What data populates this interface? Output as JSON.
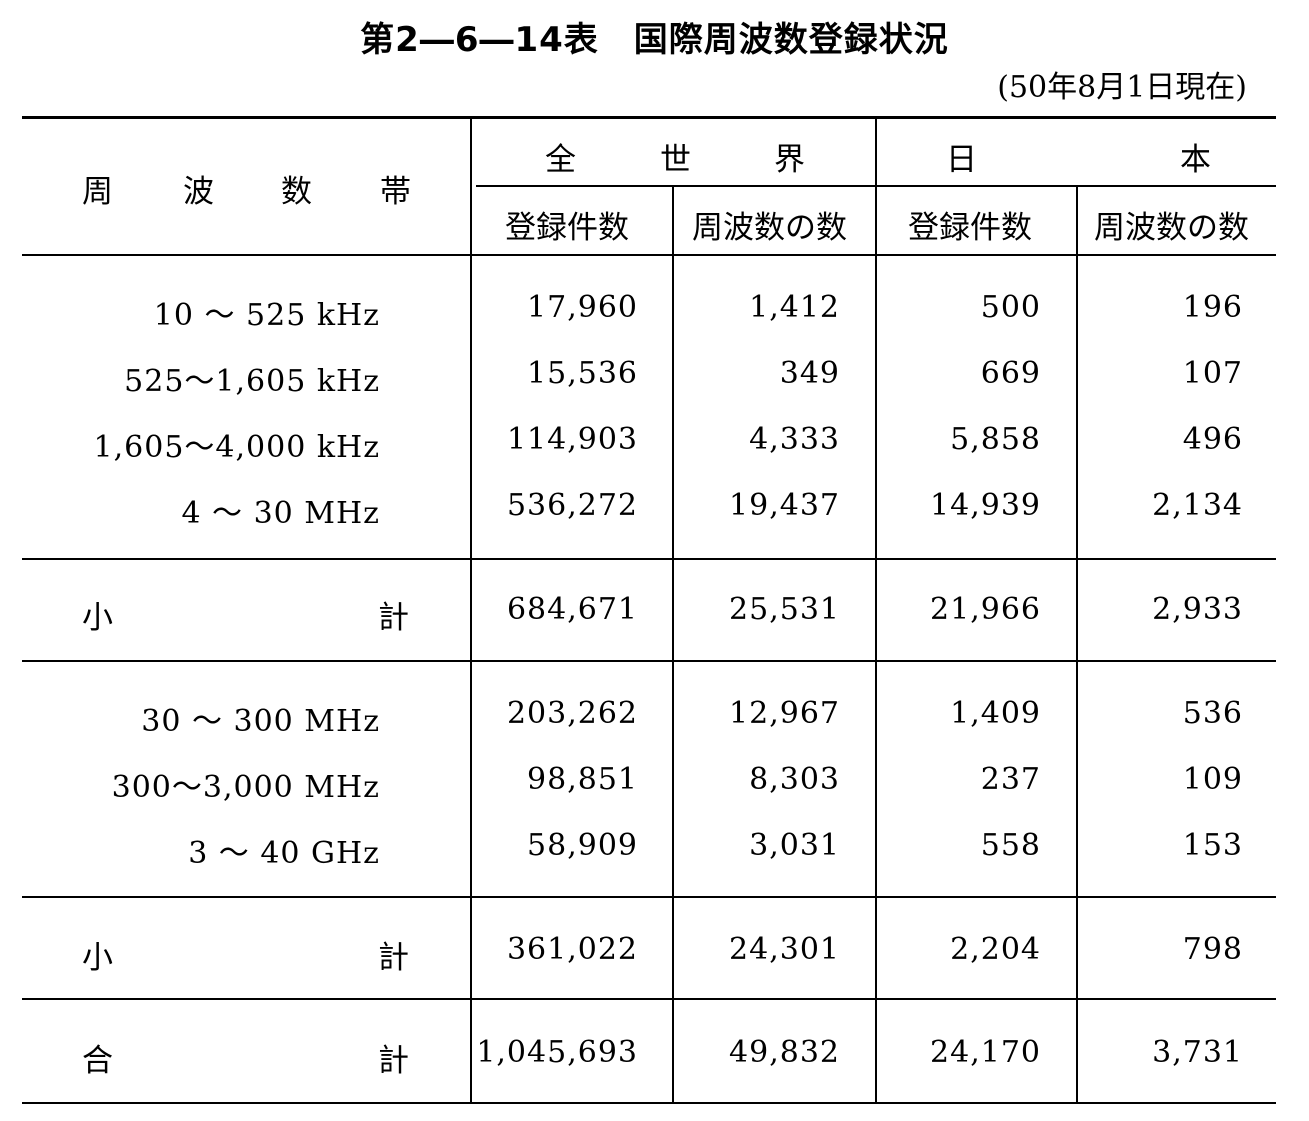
{
  "title": "第2―6―14表　国際周波数登録状況",
  "date_note": "(50年8月1日現在)",
  "header": {
    "band_label": [
      "周",
      "波",
      "数",
      "帯"
    ],
    "world_label": [
      "全",
      "世",
      "界"
    ],
    "japan_label": [
      "日",
      "本"
    ],
    "sub_registrations": "登録件数",
    "sub_frequencies": "周波数の数"
  },
  "group1": [
    {
      "band": "10 ～ 525 kHz",
      "w_reg": "17,960",
      "w_freq": "1,412",
      "j_reg": "500",
      "j_freq": "196"
    },
    {
      "band": "525～1,605 kHz",
      "w_reg": "15,536",
      "w_freq": "349",
      "j_reg": "669",
      "j_freq": "107"
    },
    {
      "band": "1,605～4,000 kHz",
      "w_reg": "114,903",
      "w_freq": "4,333",
      "j_reg": "5,858",
      "j_freq": "496"
    },
    {
      "band": "4 ～ 30 MHz",
      "w_reg": "536,272",
      "w_freq": "19,437",
      "j_reg": "14,939",
      "j_freq": "2,134"
    }
  ],
  "subtotal1": {
    "label_left": "小",
    "label_right": "計",
    "w_reg": "684,671",
    "w_freq": "25,531",
    "j_reg": "21,966",
    "j_freq": "2,933"
  },
  "group2": [
    {
      "band": "30 ～ 300 MHz",
      "w_reg": "203,262",
      "w_freq": "12,967",
      "j_reg": "1,409",
      "j_freq": "536"
    },
    {
      "band": "300～3,000 MHz",
      "w_reg": "98,851",
      "w_freq": "8,303",
      "j_reg": "237",
      "j_freq": "109"
    },
    {
      "band": "3 ～ 40 GHz",
      "w_reg": "58,909",
      "w_freq": "3,031",
      "j_reg": "558",
      "j_freq": "153"
    }
  ],
  "subtotal2": {
    "label_left": "小",
    "label_right": "計",
    "w_reg": "361,022",
    "w_freq": "24,301",
    "j_reg": "2,204",
    "j_freq": "798"
  },
  "total": {
    "label_left": "合",
    "label_right": "計",
    "w_reg": "1,045,693",
    "w_freq": "49,832",
    "j_reg": "24,170",
    "j_freq": "3,731"
  }
}
